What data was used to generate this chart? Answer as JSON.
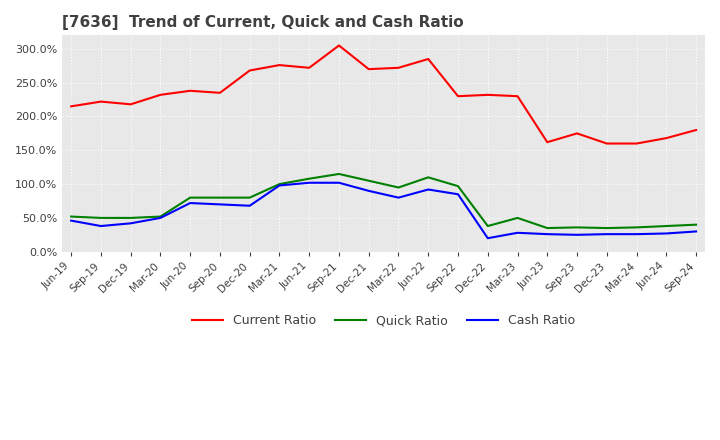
{
  "title": "[7636]  Trend of Current, Quick and Cash Ratio",
  "title_fontsize": 11,
  "title_color": "#404040",
  "background_color": "#ffffff",
  "plot_background": "#e8e8e8",
  "grid_color": "#ffffff",
  "ylim": [
    0,
    320
  ],
  "yticks": [
    0,
    50,
    100,
    150,
    200,
    250,
    300
  ],
  "legend_labels": [
    "Current Ratio",
    "Quick Ratio",
    "Cash Ratio"
  ],
  "legend_colors": [
    "#ff0000",
    "#008000",
    "#0000ff"
  ],
  "x_labels": [
    "Jun-19",
    "Sep-19",
    "Dec-19",
    "Mar-20",
    "Jun-20",
    "Sep-20",
    "Dec-20",
    "Mar-21",
    "Jun-21",
    "Sep-21",
    "Dec-21",
    "Mar-22",
    "Jun-22",
    "Sep-22",
    "Dec-22",
    "Mar-23",
    "Jun-23",
    "Sep-23",
    "Dec-23",
    "Mar-24",
    "Jun-24",
    "Sep-24"
  ],
  "current_ratio": [
    215,
    222,
    218,
    232,
    238,
    235,
    268,
    276,
    272,
    305,
    270,
    272,
    285,
    230,
    232,
    230,
    162,
    175,
    160,
    160,
    168,
    180
  ],
  "quick_ratio": [
    52,
    50,
    50,
    52,
    80,
    80,
    80,
    100,
    108,
    115,
    105,
    95,
    110,
    97,
    38,
    50,
    35,
    36,
    35,
    36,
    38,
    40
  ],
  "cash_ratio": [
    46,
    38,
    42,
    50,
    72,
    70,
    68,
    98,
    102,
    102,
    90,
    80,
    92,
    85,
    20,
    28,
    26,
    25,
    26,
    26,
    27,
    30
  ]
}
